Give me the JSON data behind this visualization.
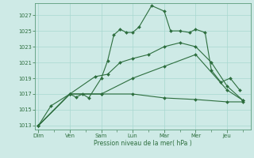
{
  "background_color": "#ceeae6",
  "grid_color": "#a8d8d0",
  "line_color": "#2d6e3e",
  "xlabel": "Pression niveau de la mer( hPa )",
  "ylim": [
    1012.5,
    1028.5
  ],
  "yticks": [
    1013,
    1015,
    1017,
    1019,
    1021,
    1023,
    1025,
    1027
  ],
  "day_labels": [
    "Dim",
    "Ven",
    "Sam",
    "Lun",
    "Mar",
    "Mer",
    "Jeu"
  ],
  "day_positions": [
    0,
    2,
    4,
    6,
    8,
    10,
    12
  ],
  "xlim": [
    -0.2,
    13.5
  ],
  "line1_x": [
    0,
    0.8,
    2,
    2.4,
    2.8,
    3.2,
    4,
    4.4,
    4.8,
    5.2,
    5.6,
    6,
    6.4,
    7.2,
    8,
    8.4,
    9,
    9.6,
    10,
    10.6,
    11,
    11.6,
    12.2,
    12.8
  ],
  "line1_y": [
    1013,
    1015.5,
    1017,
    1016.6,
    1017.0,
    1016.5,
    1019.0,
    1021.2,
    1024.5,
    1025.2,
    1024.8,
    1024.8,
    1025.5,
    1028.2,
    1027.5,
    1025.0,
    1025.0,
    1024.8,
    1025.2,
    1024.8,
    1020.0,
    1018.5,
    1019.0,
    1017.5
  ],
  "line2_x": [
    0,
    2,
    3.6,
    4.4,
    5.2,
    6.0,
    7.0,
    8.0,
    9.0,
    10.0,
    11.0,
    12.0,
    13.0
  ],
  "line2_y": [
    1013,
    1017,
    1019.2,
    1019.5,
    1021.0,
    1021.5,
    1022.0,
    1023.0,
    1023.5,
    1023.0,
    1021.0,
    1018.0,
    1016.2
  ],
  "line3_x": [
    0,
    2,
    4,
    6,
    8,
    10,
    12,
    13.0
  ],
  "line3_y": [
    1013,
    1017,
    1017.0,
    1019.0,
    1020.5,
    1022.0,
    1017.5,
    1016.2
  ],
  "line4_x": [
    0,
    2,
    4,
    6,
    8,
    10,
    12,
    13.0
  ],
  "line4_y": [
    1013,
    1017,
    1017.0,
    1017.0,
    1016.5,
    1016.3,
    1016.0,
    1016.0
  ]
}
